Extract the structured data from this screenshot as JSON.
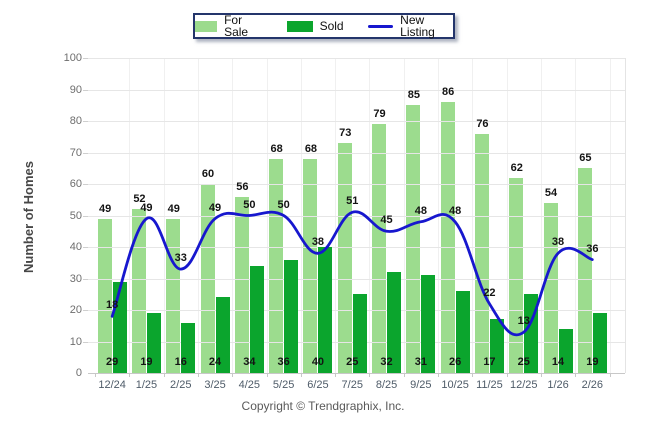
{
  "legend": {
    "items": [
      {
        "label": "For Sale",
        "type": "bar-swatch",
        "color": "#9CDB8D"
      },
      {
        "label": "Sold",
        "type": "bar-swatch",
        "color": "#0BA52D"
      },
      {
        "label": "New Listing",
        "type": "line-swatch",
        "color": "#1717CE"
      }
    ]
  },
  "footer": {
    "copyright": "Copyright © Trendgraphix, Inc."
  },
  "chart_data": {
    "type": "bar",
    "combo": "grouped bars + smoothed line",
    "title": "",
    "xlabel": "",
    "ylabel": "Number of Homes",
    "ylim": [
      0,
      100
    ],
    "ytick_step": 10,
    "grid": true,
    "legend_position": "top-center",
    "categories": [
      "12/24",
      "1/25",
      "2/25",
      "3/25",
      "4/25",
      "5/25",
      "6/25",
      "7/25",
      "8/25",
      "9/25",
      "10/25",
      "11/25",
      "12/25",
      "1/26",
      "2/26"
    ],
    "series": [
      {
        "name": "For Sale",
        "type": "bar",
        "color": "#9CDB8D",
        "fill": "rgba(96,198,72,0.62)",
        "values": [
          49,
          52,
          49,
          60,
          56,
          68,
          68,
          73,
          79,
          85,
          86,
          76,
          62,
          54,
          65
        ]
      },
      {
        "name": "Sold",
        "type": "bar",
        "color": "#0BA52D",
        "values": [
          29,
          19,
          16,
          24,
          34,
          36,
          40,
          25,
          32,
          31,
          26,
          17,
          25,
          14,
          19
        ]
      },
      {
        "name": "New Listing",
        "type": "line",
        "color": "#1717CE",
        "values": [
          18,
          49,
          33,
          49,
          50,
          50,
          38,
          51,
          45,
          48,
          48,
          22,
          13,
          38,
          36
        ]
      }
    ]
  }
}
